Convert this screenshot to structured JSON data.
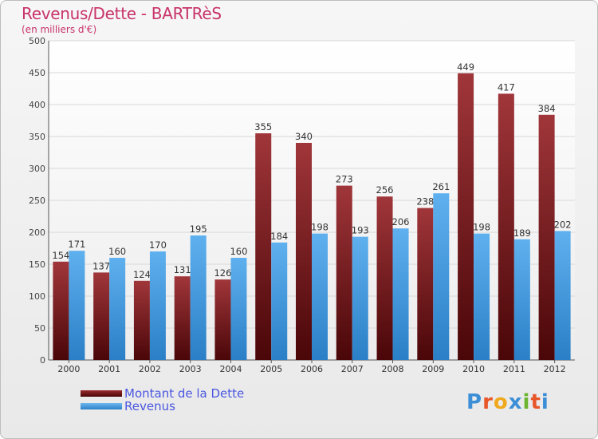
{
  "header": {
    "title": "Revenus/Dette - BARTRèS",
    "subtitle": "(en milliers d'€)"
  },
  "legend": {
    "items": [
      {
        "label": "Montant de la Dette",
        "color": "#7a1418"
      },
      {
        "label": "Revenus",
        "color": "#3d9be0"
      }
    ]
  },
  "logo": {
    "text": "Proxiti",
    "colors": [
      "#3c8fd6",
      "#e8572a",
      "#f0a81c",
      "#3c8fd6",
      "#6bb52f",
      "#e8572a",
      "#3c8fd6"
    ]
  },
  "chart_data": {
    "type": "bar",
    "categories": [
      "2000",
      "2001",
      "2002",
      "2003",
      "2004",
      "2005",
      "2006",
      "2007",
      "2008",
      "2009",
      "2010",
      "2011",
      "2012"
    ],
    "series": [
      {
        "name": "Montant de la Dette",
        "color": "#7a1418",
        "values": [
          154,
          137,
          124,
          131,
          126,
          355,
          340,
          273,
          256,
          238,
          449,
          417,
          384
        ]
      },
      {
        "name": "Revenus",
        "color": "#3d9be0",
        "values": [
          171,
          160,
          170,
          195,
          160,
          184,
          198,
          193,
          206,
          261,
          198,
          189,
          202
        ]
      }
    ],
    "ylim": [
      0,
      500
    ],
    "yticks": [
      0,
      50,
      100,
      150,
      200,
      250,
      300,
      350,
      400,
      450,
      500
    ],
    "grid": true
  }
}
